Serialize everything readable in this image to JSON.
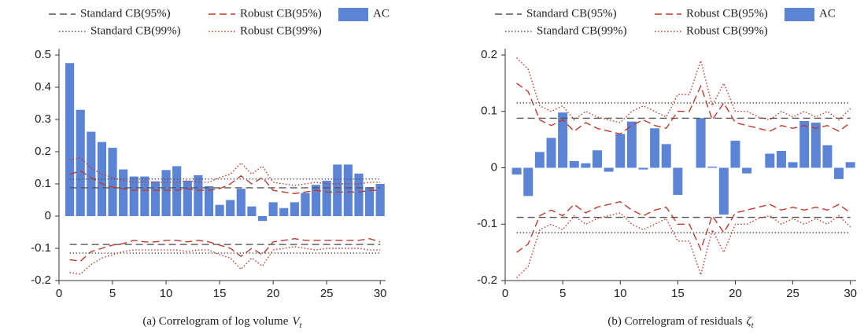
{
  "chart_data": [
    {
      "type": "bar",
      "caption": "(a) Correlogram of log volume",
      "caption_symbol": "V",
      "caption_subscript": "t",
      "x": [
        1,
        2,
        3,
        4,
        5,
        6,
        7,
        8,
        9,
        10,
        11,
        12,
        13,
        14,
        15,
        16,
        17,
        18,
        19,
        20,
        21,
        22,
        23,
        24,
        25,
        26,
        27,
        28,
        29,
        30
      ],
      "xlim": [
        0,
        30.5
      ],
      "xticks": [
        0,
        5,
        10,
        15,
        20,
        25,
        30
      ],
      "ylim": [
        -0.2,
        0.5
      ],
      "yticks": [
        -0.2,
        -0.1,
        0,
        0.1,
        0.2,
        0.3,
        0.4,
        0.5
      ],
      "series": [
        {
          "name": "Standard CB(95%)",
          "color": "#555555",
          "dash": "dashed",
          "upper": [
            0.088,
            0.088,
            0.088,
            0.088,
            0.088,
            0.088,
            0.088,
            0.088,
            0.088,
            0.088,
            0.088,
            0.088,
            0.088,
            0.088,
            0.088,
            0.088,
            0.088,
            0.088,
            0.088,
            0.088,
            0.088,
            0.088,
            0.088,
            0.088,
            0.088,
            0.088,
            0.088,
            0.088,
            0.088,
            0.088
          ],
          "lower": [
            -0.088,
            -0.088,
            -0.088,
            -0.088,
            -0.088,
            -0.088,
            -0.088,
            -0.088,
            -0.088,
            -0.088,
            -0.088,
            -0.088,
            -0.088,
            -0.088,
            -0.088,
            -0.088,
            -0.088,
            -0.088,
            -0.088,
            -0.088,
            -0.088,
            -0.088,
            -0.088,
            -0.088,
            -0.088,
            -0.088,
            -0.088,
            -0.088,
            -0.088,
            -0.088
          ]
        },
        {
          "name": "Robust CB(95%)",
          "color": "#c0392b",
          "dash": "dashed",
          "upper": [
            0.13,
            0.14,
            0.12,
            0.1,
            0.09,
            0.085,
            0.08,
            0.08,
            0.08,
            0.08,
            0.08,
            0.085,
            0.08,
            0.08,
            0.085,
            0.1,
            0.125,
            0.1,
            0.12,
            0.08,
            0.075,
            0.07,
            0.075,
            0.08,
            0.075,
            0.075,
            0.075,
            0.075,
            0.08,
            0.08
          ],
          "lower": [
            -0.135,
            -0.14,
            -0.11,
            -0.1,
            -0.09,
            -0.085,
            -0.075,
            -0.08,
            -0.08,
            -0.075,
            -0.075,
            -0.08,
            -0.075,
            -0.08,
            -0.09,
            -0.1,
            -0.125,
            -0.1,
            -0.12,
            -0.08,
            -0.075,
            -0.07,
            -0.075,
            -0.075,
            -0.075,
            -0.075,
            -0.075,
            -0.075,
            -0.07,
            -0.08
          ]
        },
        {
          "name": "AC",
          "color": "#5b83d6",
          "values": [
            0.475,
            0.33,
            0.262,
            0.23,
            0.212,
            0.145,
            0.123,
            0.123,
            0.108,
            0.143,
            0.155,
            0.11,
            0.127,
            0.093,
            0.035,
            0.05,
            0.085,
            0.03,
            -0.015,
            0.043,
            0.025,
            0.043,
            0.072,
            0.097,
            0.11,
            0.16,
            0.16,
            0.132,
            0.09,
            0.1
          ]
        },
        {
          "name": "Standard CB(99%)",
          "color": "#555555",
          "dash": "dotted",
          "upper": [
            0.115,
            0.115,
            0.115,
            0.115,
            0.115,
            0.115,
            0.115,
            0.115,
            0.115,
            0.115,
            0.115,
            0.115,
            0.115,
            0.115,
            0.115,
            0.115,
            0.115,
            0.115,
            0.115,
            0.115,
            0.115,
            0.115,
            0.115,
            0.115,
            0.115,
            0.115,
            0.115,
            0.115,
            0.115,
            0.115
          ],
          "lower": [
            -0.115,
            -0.115,
            -0.115,
            -0.115,
            -0.115,
            -0.115,
            -0.115,
            -0.115,
            -0.115,
            -0.115,
            -0.115,
            -0.115,
            -0.115,
            -0.115,
            -0.115,
            -0.115,
            -0.115,
            -0.115,
            -0.115,
            -0.115,
            -0.115,
            -0.115,
            -0.115,
            -0.115,
            -0.115,
            -0.115,
            -0.115,
            -0.115,
            -0.115,
            -0.115
          ]
        },
        {
          "name": "Robust CB(99%)",
          "color": "#c0392b",
          "dash": "dotted",
          "upper": [
            0.175,
            0.18,
            0.15,
            0.13,
            0.12,
            0.11,
            0.105,
            0.105,
            0.105,
            0.105,
            0.105,
            0.11,
            0.105,
            0.105,
            0.12,
            0.13,
            0.165,
            0.13,
            0.155,
            0.105,
            0.1,
            0.095,
            0.1,
            0.105,
            0.1,
            0.1,
            0.1,
            0.1,
            0.105,
            0.105
          ],
          "lower": [
            -0.175,
            -0.18,
            -0.15,
            -0.13,
            -0.12,
            -0.11,
            -0.105,
            -0.105,
            -0.105,
            -0.105,
            -0.105,
            -0.11,
            -0.105,
            -0.105,
            -0.12,
            -0.13,
            -0.165,
            -0.13,
            -0.155,
            -0.105,
            -0.1,
            -0.095,
            -0.1,
            -0.105,
            -0.1,
            -0.1,
            -0.1,
            -0.1,
            -0.105,
            -0.105
          ]
        }
      ]
    },
    {
      "type": "bar",
      "caption": "(b) Correlogram of residuals",
      "caption_symbol": "ζ",
      "caption_subscript": "t",
      "x": [
        1,
        2,
        3,
        4,
        5,
        6,
        7,
        8,
        9,
        10,
        11,
        12,
        13,
        14,
        15,
        16,
        17,
        18,
        19,
        20,
        21,
        22,
        23,
        24,
        25,
        26,
        27,
        28,
        29,
        30
      ],
      "xlim": [
        0,
        30.5
      ],
      "xticks": [
        0,
        5,
        10,
        15,
        20,
        25,
        30
      ],
      "ylim": [
        -0.2,
        0.2
      ],
      "yticks": [
        -0.2,
        -0.1,
        0,
        0.1,
        0.2
      ],
      "series": [
        {
          "name": "Standard CB(95%)",
          "color": "#555555",
          "dash": "dashed",
          "upper": [
            0.088,
            0.088,
            0.088,
            0.088,
            0.088,
            0.088,
            0.088,
            0.088,
            0.088,
            0.088,
            0.088,
            0.088,
            0.088,
            0.088,
            0.088,
            0.088,
            0.088,
            0.088,
            0.088,
            0.088,
            0.088,
            0.088,
            0.088,
            0.088,
            0.088,
            0.088,
            0.088,
            0.088,
            0.088,
            0.088
          ],
          "lower": [
            -0.088,
            -0.088,
            -0.088,
            -0.088,
            -0.088,
            -0.088,
            -0.088,
            -0.088,
            -0.088,
            -0.088,
            -0.088,
            -0.088,
            -0.088,
            -0.088,
            -0.088,
            -0.088,
            -0.088,
            -0.088,
            -0.088,
            -0.088,
            -0.088,
            -0.088,
            -0.088,
            -0.088,
            -0.088,
            -0.088,
            -0.088,
            -0.088,
            -0.088,
            -0.088
          ]
        },
        {
          "name": "Robust CB(95%)",
          "color": "#c0392b",
          "dash": "dashed",
          "upper": [
            0.15,
            0.135,
            0.085,
            0.075,
            0.085,
            0.065,
            0.08,
            0.07,
            0.065,
            0.06,
            0.075,
            0.085,
            0.075,
            0.07,
            0.1,
            0.1,
            0.145,
            0.085,
            0.115,
            0.08,
            0.075,
            0.07,
            0.065,
            0.075,
            0.07,
            0.075,
            0.07,
            0.075,
            0.065,
            0.08
          ],
          "lower": [
            -0.15,
            -0.135,
            -0.085,
            -0.075,
            -0.085,
            -0.065,
            -0.08,
            -0.07,
            -0.065,
            -0.06,
            -0.075,
            -0.085,
            -0.075,
            -0.07,
            -0.1,
            -0.1,
            -0.145,
            -0.085,
            -0.115,
            -0.08,
            -0.075,
            -0.07,
            -0.065,
            -0.075,
            -0.07,
            -0.075,
            -0.07,
            -0.075,
            -0.065,
            -0.08
          ]
        },
        {
          "name": "AC",
          "color": "#5b83d6",
          "values": [
            -0.012,
            -0.05,
            0.028,
            0.053,
            0.098,
            0.012,
            0.008,
            0.031,
            -0.007,
            0.06,
            0.082,
            -0.003,
            0.07,
            0.042,
            -0.048,
            0.0,
            0.088,
            0.002,
            -0.083,
            0.048,
            -0.01,
            0.0,
            0.025,
            0.03,
            0.01,
            0.083,
            0.08,
            0.04,
            -0.02,
            0.01
          ]
        },
        {
          "name": "Standard CB(99%)",
          "color": "#555555",
          "dash": "dotted",
          "upper": [
            0.115,
            0.115,
            0.115,
            0.115,
            0.115,
            0.115,
            0.115,
            0.115,
            0.115,
            0.115,
            0.115,
            0.115,
            0.115,
            0.115,
            0.115,
            0.115,
            0.115,
            0.115,
            0.115,
            0.115,
            0.115,
            0.115,
            0.115,
            0.115,
            0.115,
            0.115,
            0.115,
            0.115,
            0.115,
            0.115
          ],
          "lower": [
            -0.115,
            -0.115,
            -0.115,
            -0.115,
            -0.115,
            -0.115,
            -0.115,
            -0.115,
            -0.115,
            -0.115,
            -0.115,
            -0.115,
            -0.115,
            -0.115,
            -0.115,
            -0.115,
            -0.115,
            -0.115,
            -0.115,
            -0.115,
            -0.115,
            -0.115,
            -0.115,
            -0.115,
            -0.115,
            -0.115,
            -0.115,
            -0.115,
            -0.115,
            -0.115
          ]
        },
        {
          "name": "Robust CB(99%)",
          "color": "#c0392b",
          "dash": "dotted",
          "upper": [
            0.195,
            0.175,
            0.11,
            0.1,
            0.11,
            0.085,
            0.1,
            0.09,
            0.085,
            0.08,
            0.1,
            0.11,
            0.1,
            0.09,
            0.13,
            0.13,
            0.19,
            0.11,
            0.15,
            0.1,
            0.1,
            0.09,
            0.085,
            0.1,
            0.09,
            0.1,
            0.09,
            0.1,
            0.085,
            0.105
          ],
          "lower": [
            -0.195,
            -0.175,
            -0.11,
            -0.1,
            -0.11,
            -0.085,
            -0.1,
            -0.09,
            -0.085,
            -0.08,
            -0.1,
            -0.11,
            -0.1,
            -0.09,
            -0.13,
            -0.13,
            -0.19,
            -0.11,
            -0.15,
            -0.1,
            -0.1,
            -0.09,
            -0.085,
            -0.1,
            -0.09,
            -0.1,
            -0.09,
            -0.1,
            -0.085,
            -0.105
          ]
        }
      ]
    }
  ]
}
